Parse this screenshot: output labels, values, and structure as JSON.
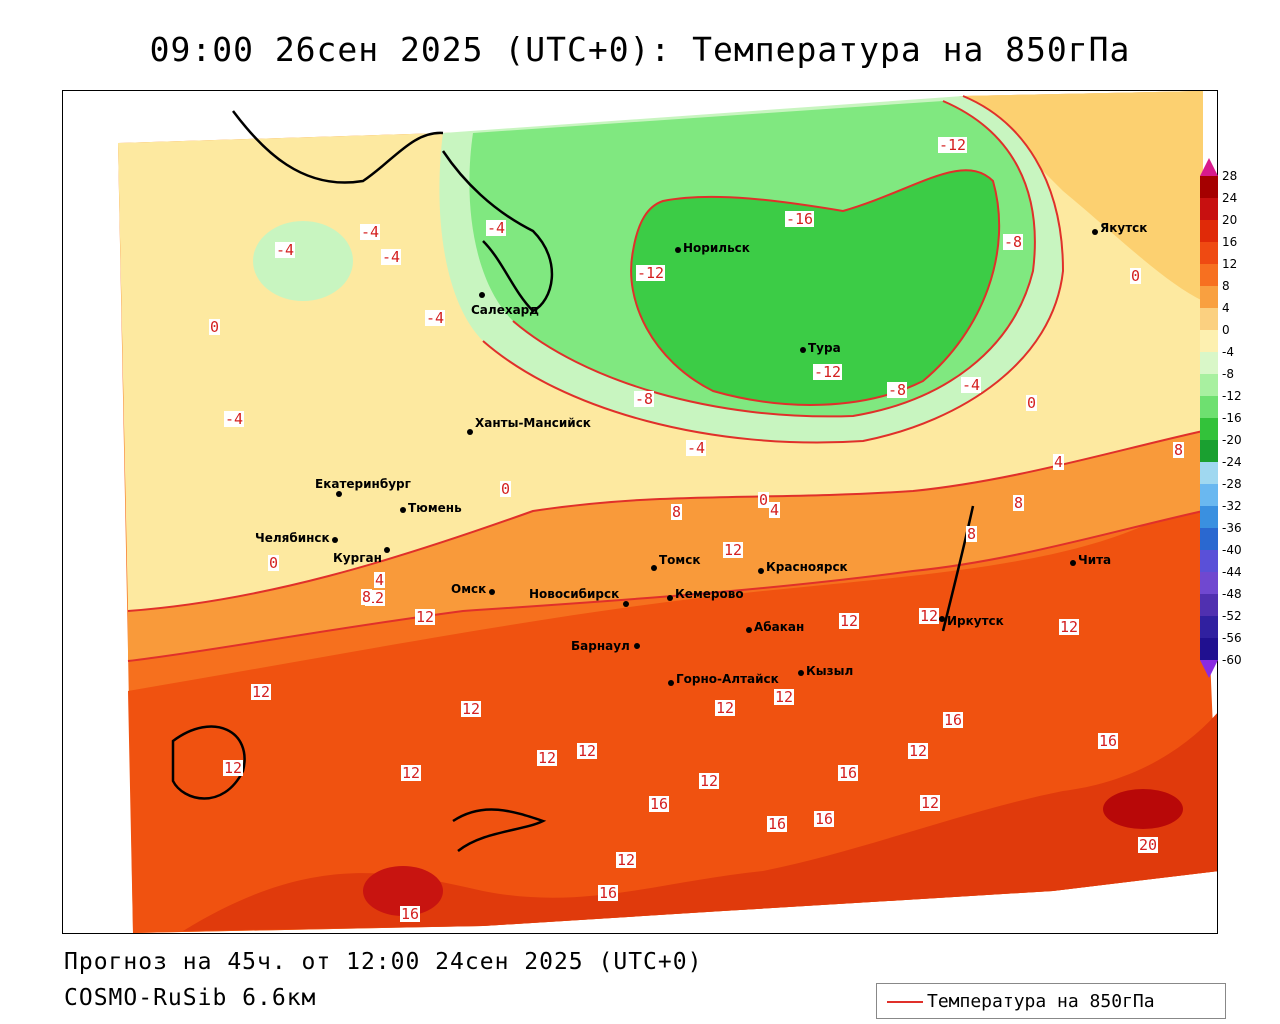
{
  "title": "09:00 26сен 2025 (UTC+0): Температура на 850гПа",
  "footer": {
    "forecast": "Прогноз на 45ч. от 12:00 24сен 2025 (UTC+0)",
    "model": "COSMO-RuSib 6.6км"
  },
  "legend": {
    "label": "Температура на 850гПа",
    "color": "#e0302a"
  },
  "colorbar": {
    "ticks": [
      "28",
      "24",
      "20",
      "16",
      "12",
      "8",
      "4",
      "0",
      "-4",
      "-8",
      "-12",
      "-16",
      "-20",
      "-24",
      "-28",
      "-32",
      "-36",
      "-40",
      "-44",
      "-48",
      "-52",
      "-56",
      "-60"
    ],
    "colors": [
      "#a50000",
      "#c81010",
      "#e02a08",
      "#ef4a12",
      "#f77020",
      "#f9a040",
      "#fbd080",
      "#fdf0b0",
      "#d9f7c8",
      "#a8f0a0",
      "#6ee070",
      "#33c23a",
      "#1aa030",
      "#a0d8f0",
      "#6ab8f0",
      "#3a90e0",
      "#2a68d0",
      "#5a50d8",
      "#7048d0",
      "#5030b0",
      "#3020a0",
      "#201090"
    ]
  },
  "cities": [
    {
      "name": "Норильск"
    },
    {
      "name": "Салехард"
    },
    {
      "name": "Тура"
    },
    {
      "name": "Якутск"
    },
    {
      "name": "Ханты-Мансийск"
    },
    {
      "name": "Екатеринбург"
    },
    {
      "name": "Тюмень"
    },
    {
      "name": "Челябинск"
    },
    {
      "name": "Курган"
    },
    {
      "name": "Омск"
    },
    {
      "name": "Томск"
    },
    {
      "name": "Красноярск"
    },
    {
      "name": "Новосибирск"
    },
    {
      "name": "Кемерово"
    },
    {
      "name": "Абакан"
    },
    {
      "name": "Иркутск"
    },
    {
      "name": "Барнаул"
    },
    {
      "name": "Горно-Алтайск"
    },
    {
      "name": "Кызыл"
    },
    {
      "name": "Чита"
    }
  ],
  "isolines": [
    "-12",
    "-16",
    "-8",
    "-12",
    "-12",
    "-4",
    "-4",
    "-4",
    "-4",
    "-4",
    "0",
    "-8",
    "-8",
    "-4",
    "0",
    "0",
    "-4",
    "4",
    "0",
    "4",
    "0",
    "8",
    "12",
    "8",
    "8",
    "12",
    "12",
    "12",
    "12",
    "12",
    "12",
    "12",
    "12",
    "12",
    "12",
    "12",
    "12",
    "16",
    "16",
    "12",
    "12",
    "16",
    "12",
    "16",
    "16",
    "16",
    "12",
    "16",
    "20",
    "16",
    "12",
    "8",
    "4",
    "0",
    "12",
    "8"
  ]
}
